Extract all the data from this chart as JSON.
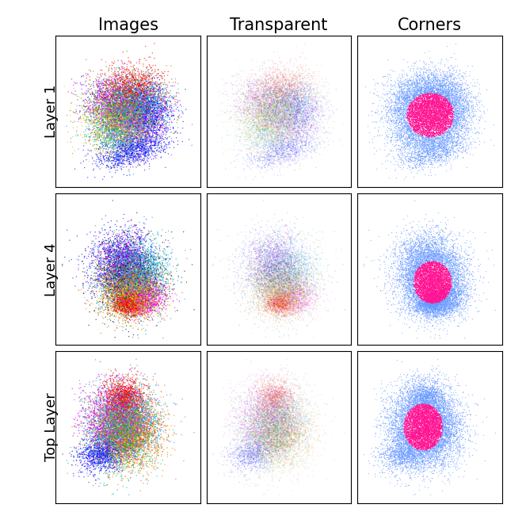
{
  "col_titles": [
    "Images",
    "Transparent",
    "Corners"
  ],
  "row_labels": [
    "Layer 1",
    "Layer 4",
    "Top Layer"
  ],
  "background_color": "#ffffff",
  "title_fontsize": 15,
  "row_label_fontsize": 13,
  "figsize": [
    6.4,
    6.41
  ],
  "dpi": 100,
  "n_classes": 10,
  "n_per_class": 1000,
  "point_size": 1.0,
  "colors_images": [
    "#ff0000",
    "#00cc00",
    "#0000ff",
    "#ff00ff",
    "#ffaa00",
    "#00aaff",
    "#aa00ff",
    "#888800",
    "#00aaaa",
    "#ff6600"
  ],
  "color_inner": "#ff1493",
  "color_outer": "#6699ff"
}
